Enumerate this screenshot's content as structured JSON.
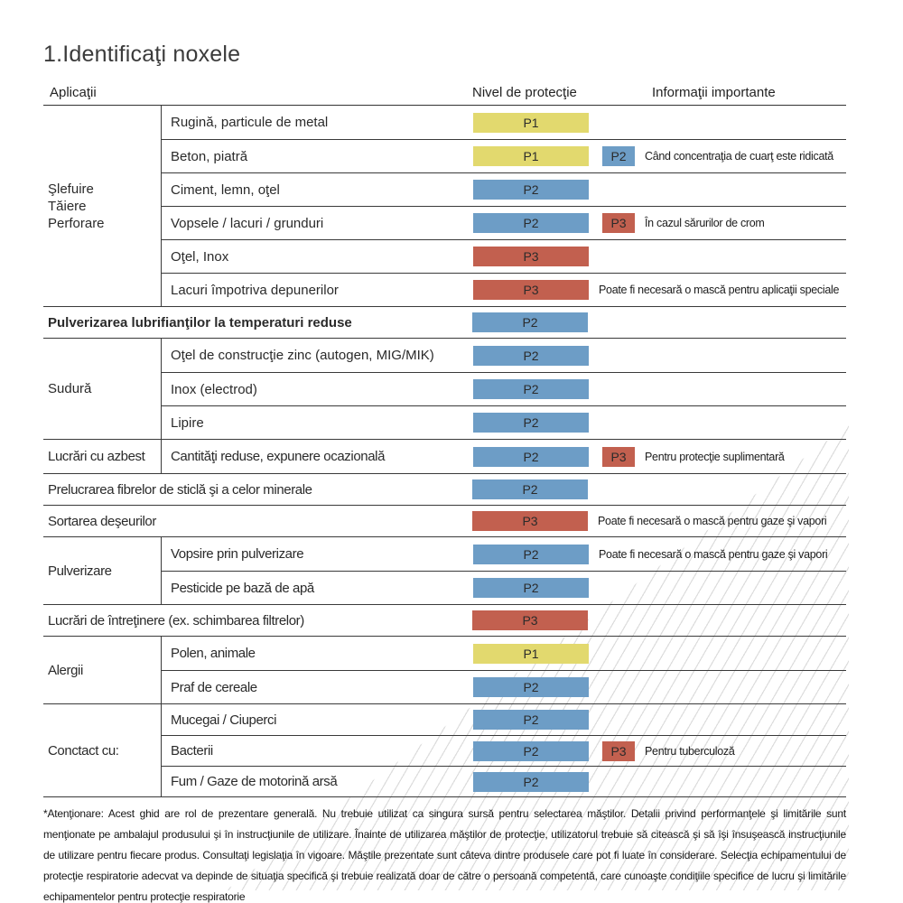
{
  "title": "1.Identificaţi noxele",
  "columns": {
    "applications": "Aplicaţii",
    "protection": "Nivel de protecţie",
    "info": "Informaţii importante"
  },
  "levels": {
    "P1": "#e2d96e",
    "P2": "#6d9dc6",
    "P3": "#c2604f"
  },
  "sections": [
    {
      "type": "group",
      "label": "Şlefuire\nTăiere\nPerforare",
      "rows": [
        {
          "item": "Rugină, particule de metal",
          "badge": "P1"
        },
        {
          "item": "Beton, piatră",
          "badge": "P1",
          "badge2": "P2",
          "info": "Când concentraţia de cuarţ este ridicată"
        },
        {
          "item": "Ciment, lemn, oţel",
          "badge": "P2"
        },
        {
          "item": "Vopsele / lacuri / grunduri",
          "badge": "P2",
          "badge2": "P3",
          "info": "În cazul sărurilor de crom"
        },
        {
          "item": "Oţel, Inox",
          "badge": "P3"
        },
        {
          "item": "Lacuri împotriva depunerilor",
          "badge": "P3",
          "info": "Poate fi necesară o mască pentru aplicaţii speciale"
        }
      ]
    },
    {
      "type": "full",
      "label": "Pulverizarea lubrifianţilor la temperaturi reduse",
      "bold": true,
      "badge": "P2"
    },
    {
      "type": "group",
      "label": "Sudură",
      "rows": [
        {
          "item": "Oţel de construcţie zinc (autogen, MIG/MIK)",
          "badge": "P2"
        },
        {
          "item": "Inox (electrod)",
          "badge": "P2"
        },
        {
          "item": "Lipire",
          "badge": "P2"
        }
      ]
    },
    {
      "type": "group",
      "label": "Lucrări cu azbest",
      "rows": [
        {
          "item": "Cantităţi reduse, expunere ocazională",
          "badge": "P2",
          "badge2": "P3",
          "info": "Pentru protecţie suplimentară"
        }
      ]
    },
    {
      "type": "full",
      "label": "Prelucrarea fibrelor de sticlă şi a celor minerale",
      "badge": "P2"
    },
    {
      "type": "full",
      "label": "Sortarea deşeurilor",
      "badge": "P3",
      "info": "Poate fi necesară o mască pentru gaze şi vapori"
    },
    {
      "type": "group",
      "label": "Pulverizare",
      "rows": [
        {
          "item": "Vopsire prin pulverizare",
          "badge": "P2",
          "info": "Poate fi necesară o mască pentru gaze şi vapori"
        },
        {
          "item": "Pesticide pe bază de apă",
          "badge": "P2"
        }
      ]
    },
    {
      "type": "full",
      "label": "Lucrări de întreţinere (ex. schimbarea filtrelor)",
      "badge": "P3"
    },
    {
      "type": "group",
      "label": "Alergii",
      "rows": [
        {
          "item": "Polen, animale",
          "badge": "P1"
        },
        {
          "item": "Praf de cereale",
          "badge": "P2"
        }
      ]
    },
    {
      "type": "group",
      "label": "Conctact cu:",
      "rows": [
        {
          "item": "Mucegai / Ciuperci",
          "badge": "P2"
        },
        {
          "item": "Bacterii",
          "badge": "P2",
          "badge2": "P3",
          "info": "Pentru tuberculoză"
        },
        {
          "item": "Fum / Gaze de motorină arsă",
          "badge": "P2"
        }
      ]
    },
    {
      "type": "full",
      "label": "Lucrări de întreţinere (ex. schimbarea filtrelor)",
      "hidden": true
    }
  ],
  "footnote": "*Atenţionare: Acest ghid are rol de prezentare generală. Nu trebuie utilizat ca singura sursă pentru selectarea măştilor. Detalii privind performanţele şi limitările sunt menţionate pe ambalajul produsului şi în instrucţiunile de utilizare. Înainte de utilizarea măştilor de protecţie, utilizatorul trebuie să citească şi să îşi însuşească instrucţiunile de utilizare pentru fiecare produs. Consultaţi legislaţia în vigoare. Măştile prezentate sunt câteva dintre produsele care pot fi luate în considerare. Selecţia echipamentului de protecţie respiratorie adecvat va depinde de situaţia specifică şi trebuie realizată doar de către o persoană competentă, care cunoaşte condiţiile specifice de lucru şi limitările echipamentelor pentru protecţie respiratorie"
}
